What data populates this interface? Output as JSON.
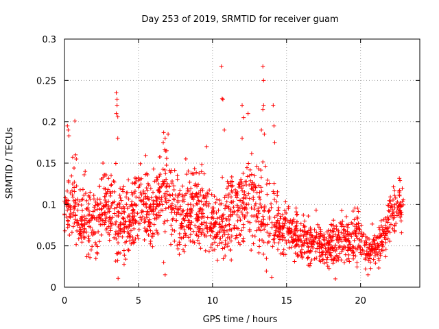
{
  "chart_data": {
    "type": "scatter",
    "title": "Day 253 of 2019, SRMTID for receiver guam",
    "xlabel": "GPS time / hours",
    "ylabel": "SRMTID / TECUs",
    "xlim": [
      0,
      24
    ],
    "ylim": [
      0,
      0.3
    ],
    "xticks": [
      0,
      5,
      10,
      15,
      20
    ],
    "xtick_labels": [
      "0",
      "5",
      "10",
      "15",
      "20"
    ],
    "yticks": [
      0,
      0.05,
      0.1,
      0.15,
      0.2,
      0.25,
      0.3
    ],
    "ytick_labels": [
      "0",
      "0.05",
      "0.1",
      "0.15",
      "0.2",
      "0.25",
      "0.3"
    ],
    "grid": true,
    "marker": "+",
    "series": [
      {
        "name": "SRMTID",
        "color": "#ff0000",
        "profile": {
          "x": [
            0,
            0.5,
            1,
            1.5,
            2,
            2.5,
            3,
            3.5,
            4,
            4.5,
            5,
            5.5,
            6,
            6.5,
            7,
            7.5,
            8,
            8.5,
            9,
            9.5,
            10,
            10.5,
            11,
            11.5,
            12,
            12.5,
            13,
            13.5,
            14,
            14.5,
            15,
            15.5,
            16,
            16.5,
            17,
            17.5,
            18,
            18.5,
            19,
            19.5,
            20,
            20.5,
            21,
            21.5,
            22,
            22.5,
            22.9
          ],
          "median": [
            0.105,
            0.1,
            0.085,
            0.08,
            0.08,
            0.09,
            0.095,
            0.085,
            0.075,
            0.08,
            0.105,
            0.1,
            0.09,
            0.12,
            0.11,
            0.09,
            0.085,
            0.095,
            0.1,
            0.09,
            0.08,
            0.075,
            0.085,
            0.095,
            0.1,
            0.11,
            0.1,
            0.09,
            0.085,
            0.075,
            0.07,
            0.065,
            0.055,
            0.055,
            0.055,
            0.05,
            0.05,
            0.055,
            0.055,
            0.06,
            0.06,
            0.045,
            0.045,
            0.06,
            0.09,
            0.095,
            0.105
          ],
          "spread": [
            0.025,
            0.035,
            0.03,
            0.025,
            0.03,
            0.03,
            0.035,
            0.04,
            0.03,
            0.03,
            0.035,
            0.035,
            0.03,
            0.035,
            0.035,
            0.03,
            0.03,
            0.035,
            0.035,
            0.03,
            0.03,
            0.03,
            0.035,
            0.035,
            0.035,
            0.035,
            0.04,
            0.04,
            0.03,
            0.025,
            0.02,
            0.02,
            0.02,
            0.02,
            0.018,
            0.018,
            0.018,
            0.02,
            0.02,
            0.022,
            0.022,
            0.015,
            0.018,
            0.02,
            0.022,
            0.022,
            0.02
          ]
        },
        "points_count": 1900,
        "notable_points": [
          {
            "x": 0.2,
            "y": 0.195
          },
          {
            "x": 0.25,
            "y": 0.19
          },
          {
            "x": 0.3,
            "y": 0.183
          },
          {
            "x": 0.7,
            "y": 0.201
          },
          {
            "x": 0.75,
            "y": 0.16
          },
          {
            "x": 0.8,
            "y": 0.155
          },
          {
            "x": 3.5,
            "y": 0.235
          },
          {
            "x": 3.55,
            "y": 0.227
          },
          {
            "x": 3.55,
            "y": 0.22
          },
          {
            "x": 3.5,
            "y": 0.21
          },
          {
            "x": 3.6,
            "y": 0.206
          },
          {
            "x": 3.6,
            "y": 0.18
          },
          {
            "x": 6.7,
            "y": 0.187
          },
          {
            "x": 6.8,
            "y": 0.18
          },
          {
            "x": 6.9,
            "y": 0.165
          },
          {
            "x": 7.0,
            "y": 0.185
          },
          {
            "x": 6.8,
            "y": 0.015
          },
          {
            "x": 6.7,
            "y": 0.03
          },
          {
            "x": 9.6,
            "y": 0.17
          },
          {
            "x": 10.6,
            "y": 0.267
          },
          {
            "x": 10.65,
            "y": 0.228
          },
          {
            "x": 10.7,
            "y": 0.227
          },
          {
            "x": 10.8,
            "y": 0.19
          },
          {
            "x": 12.0,
            "y": 0.22
          },
          {
            "x": 12.1,
            "y": 0.205
          },
          {
            "x": 12.0,
            "y": 0.18
          },
          {
            "x": 12.4,
            "y": 0.21
          },
          {
            "x": 13.4,
            "y": 0.267
          },
          {
            "x": 13.45,
            "y": 0.25
          },
          {
            "x": 13.45,
            "y": 0.22
          },
          {
            "x": 13.4,
            "y": 0.215
          },
          {
            "x": 13.3,
            "y": 0.19
          },
          {
            "x": 13.5,
            "y": 0.185
          },
          {
            "x": 14.1,
            "y": 0.22
          },
          {
            "x": 14.15,
            "y": 0.195
          },
          {
            "x": 14.2,
            "y": 0.175
          },
          {
            "x": 14.0,
            "y": 0.012
          },
          {
            "x": 18.3,
            "y": 0.01
          },
          {
            "x": 20.5,
            "y": 0.015
          },
          {
            "x": 2.6,
            "y": 0.15
          },
          {
            "x": 1.4,
            "y": 0.14
          }
        ]
      }
    ]
  }
}
